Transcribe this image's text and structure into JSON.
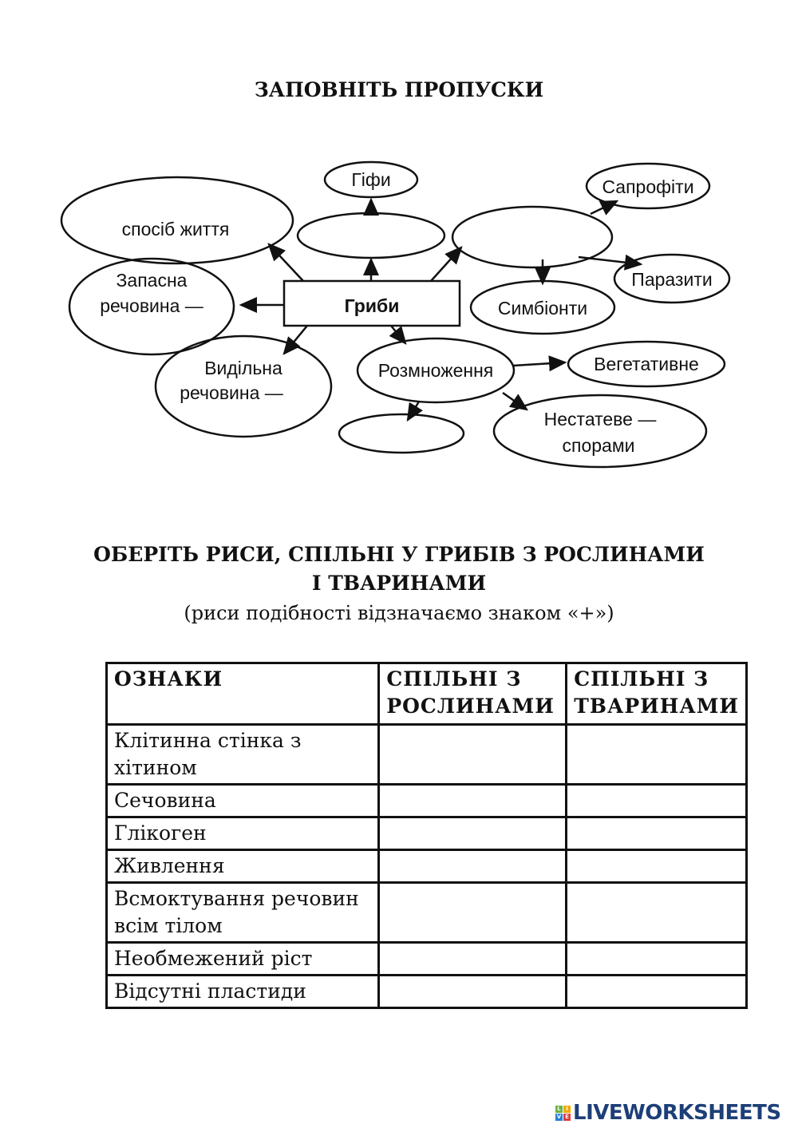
{
  "section1": {
    "title": "ЗАПОВНІТЬ ПРОПУСКИ"
  },
  "diagram": {
    "center": "Гриби",
    "nodes": {
      "hyphae": "Гіфи",
      "lifestyle": "спосіб життя",
      "storage": [
        "Запасна",
        "речовина —"
      ],
      "excretory": [
        "Видільна",
        "речовина —"
      ],
      "saprophytes": "Сапрофіти",
      "parasites": "Паразити",
      "symbionts": "Симбіонти",
      "reproduction": "Розмноження",
      "vegetative": "Вегетативне",
      "asexual": [
        "Нестатеве —",
        "спорами"
      ]
    }
  },
  "section2": {
    "title_line1": "ОБЕРІТЬ РИСИ, СПІЛЬНІ У ГРИБІВ З РОСЛИНАМИ",
    "title_line2": "І ТВАРИНАМИ",
    "subtitle": "(риси подібності відзначаємо знаком «+»)"
  },
  "table": {
    "headers": [
      "ОЗНАКИ",
      "СПІЛЬНІ З РОСЛИНАМИ",
      "СПІЛЬНІ З ТВАРИНАМИ"
    ],
    "rows": [
      "Клітинна стінка з хітином",
      "Сечовина",
      "Глікоген",
      "Живлення",
      "Всмоктування речовин всім тілом",
      "Необмежений ріст",
      "Відсутні пластиди"
    ]
  },
  "footer": {
    "logo_text": "LIVEWORKSHEETS",
    "logo_letters": [
      "L",
      "I",
      "V",
      "E"
    ],
    "logo_colors": [
      "#6cb33f",
      "#f2a900",
      "#2a7fd4",
      "#e03a3e"
    ],
    "brand_color": "#1d3f78"
  }
}
